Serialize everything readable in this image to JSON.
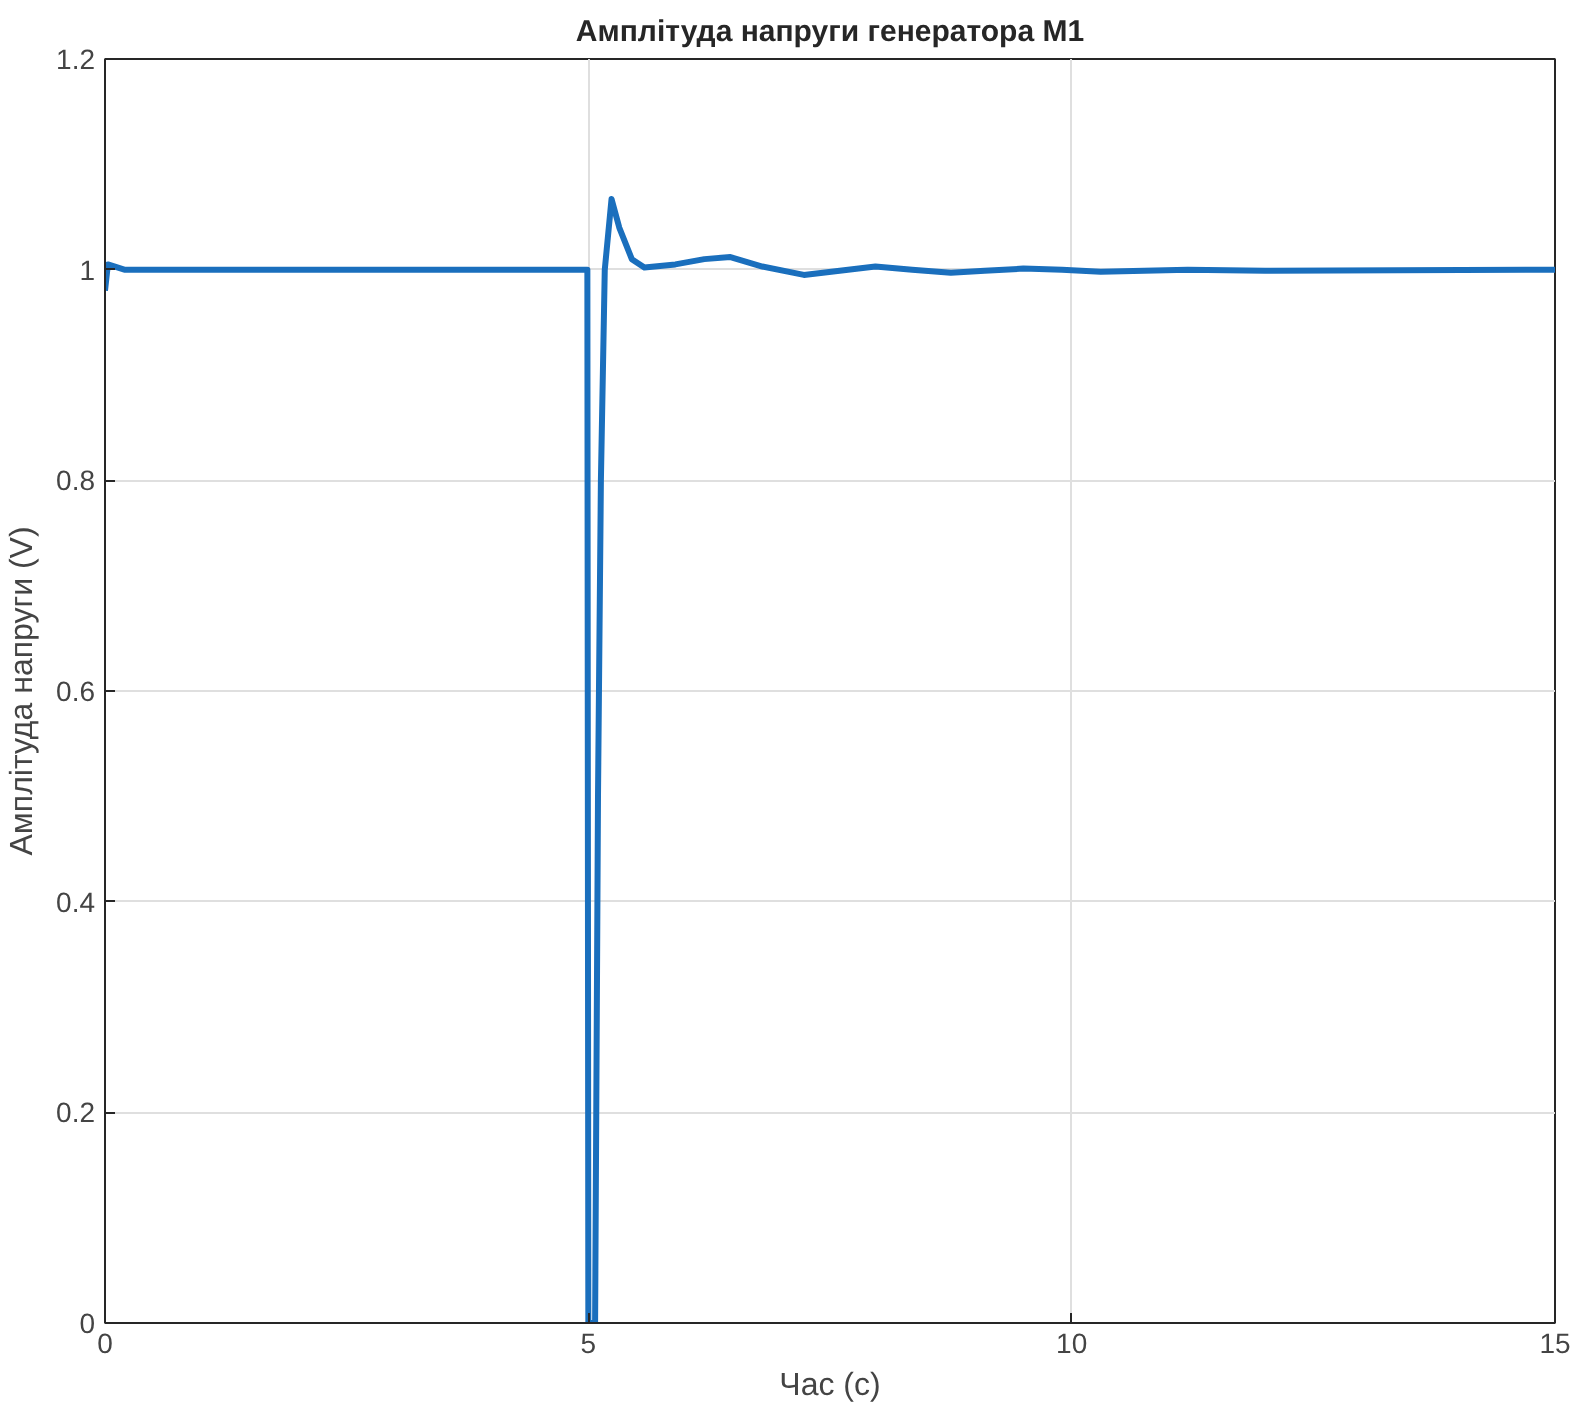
{
  "chart_data": {
    "type": "line",
    "title": "Амплітуда напруги генератора M1",
    "xlabel": "Час (c)",
    "ylabel": "Амплітуда напруги (V)",
    "x": [
      0,
      0.03,
      0.2,
      4.99,
      5.0,
      5.07,
      5.1,
      5.13,
      5.17,
      5.24,
      5.32,
      5.45,
      5.58,
      5.9,
      6.2,
      6.47,
      6.8,
      7.23,
      7.6,
      7.97,
      8.35,
      8.75,
      9.1,
      9.5,
      9.9,
      10.3,
      11.2,
      12,
      15
    ],
    "series": [
      {
        "color": "#1a6fbd",
        "values": [
          0.98,
          1.005,
          1.0,
          1.0,
          0.0,
          0.0,
          0.5,
          0.8,
          1.0,
          1.067,
          1.04,
          1.01,
          1.002,
          1.005,
          1.01,
          1.012,
          1.003,
          0.995,
          0.999,
          1.003,
          1.0,
          0.997,
          0.999,
          1.001,
          1.0,
          0.998,
          1.0,
          0.999,
          1.0
        ]
      }
    ],
    "xlim": [
      0,
      15
    ],
    "ylim": [
      0,
      1.2
    ],
    "xticks": [
      0,
      5,
      10,
      15
    ],
    "yticks": [
      0,
      0.2,
      0.4,
      0.6,
      0.8,
      1,
      1.2
    ],
    "grid": true,
    "marker": "none",
    "line_style": "solid"
  }
}
